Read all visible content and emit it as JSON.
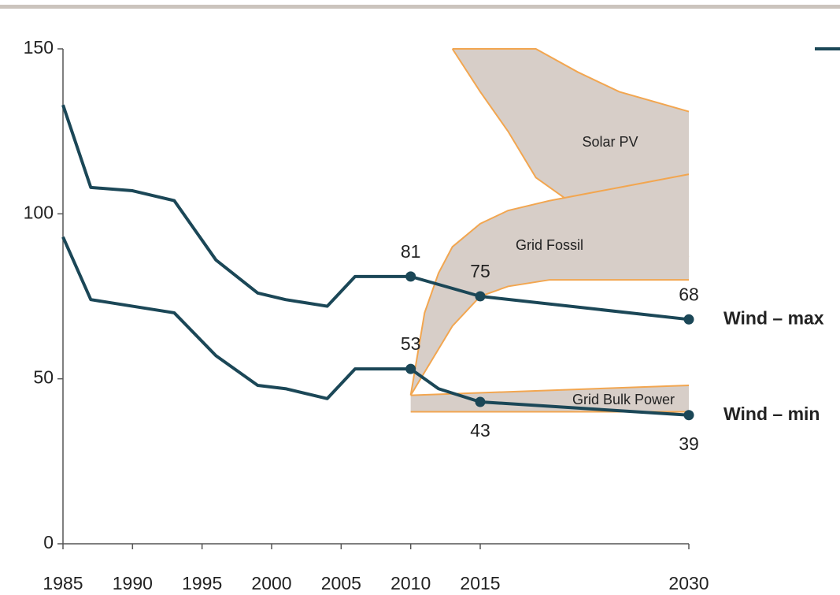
{
  "chart_data": {
    "type": "line",
    "xlim": [
      1985,
      2030
    ],
    "xticks": [
      1985,
      1990,
      1995,
      2000,
      2005,
      2010,
      2015,
      2030
    ],
    "ylim": [
      0,
      150
    ],
    "yticks": [
      0,
      50,
      100,
      150
    ],
    "markers_at": [
      2010,
      2015,
      2030
    ],
    "series": [
      {
        "name": "Wind – max",
        "color": "#1b4757",
        "x": [
          1985,
          1987,
          1990,
          1993,
          1996,
          1999,
          2001,
          2004,
          2006,
          2010,
          2015,
          2030
        ],
        "values": [
          133,
          108,
          107,
          104,
          86,
          76,
          74,
          72,
          81,
          81,
          75,
          68
        ],
        "label_position": [
          "above",
          "above",
          "above"
        ]
      },
      {
        "name": "Wind – min",
        "color": "#1b4757",
        "x": [
          1985,
          1987,
          1990,
          1993,
          1996,
          1999,
          2001,
          2004,
          2006,
          2010,
          2012,
          2015,
          2030
        ],
        "values": [
          93,
          74,
          72,
          70,
          57,
          48,
          47,
          44,
          53,
          53,
          47,
          43,
          39
        ],
        "label_position": [
          "above",
          "below",
          "below"
        ]
      }
    ],
    "bands": [
      {
        "name": "Solar PV",
        "color": "#d7cec8",
        "edge_color": "#f2a650",
        "x": [
          2013,
          2015,
          2017,
          2019,
          2022,
          2025,
          2030
        ],
        "high": [
          150,
          150,
          150,
          150,
          143,
          137,
          131
        ],
        "low": [
          150,
          137,
          125,
          111,
          102,
          95,
          87
        ]
      },
      {
        "name": "Grid Fossil",
        "color": "#d7cec8",
        "edge_color": "#f2a650",
        "x": [
          2010,
          2011,
          2012,
          2013,
          2015,
          2017,
          2020,
          2025,
          2030
        ],
        "high": [
          45,
          70,
          82,
          90,
          97,
          101,
          104,
          108,
          112
        ],
        "low": [
          45,
          52,
          59,
          66,
          75,
          78,
          80,
          80,
          80
        ]
      },
      {
        "name": "Grid Bulk Power",
        "color": "#d7cec8",
        "edge_color": "#f2a650",
        "x": [
          2010,
          2030
        ],
        "high": [
          45,
          48
        ],
        "low": [
          40,
          40
        ]
      }
    ]
  }
}
